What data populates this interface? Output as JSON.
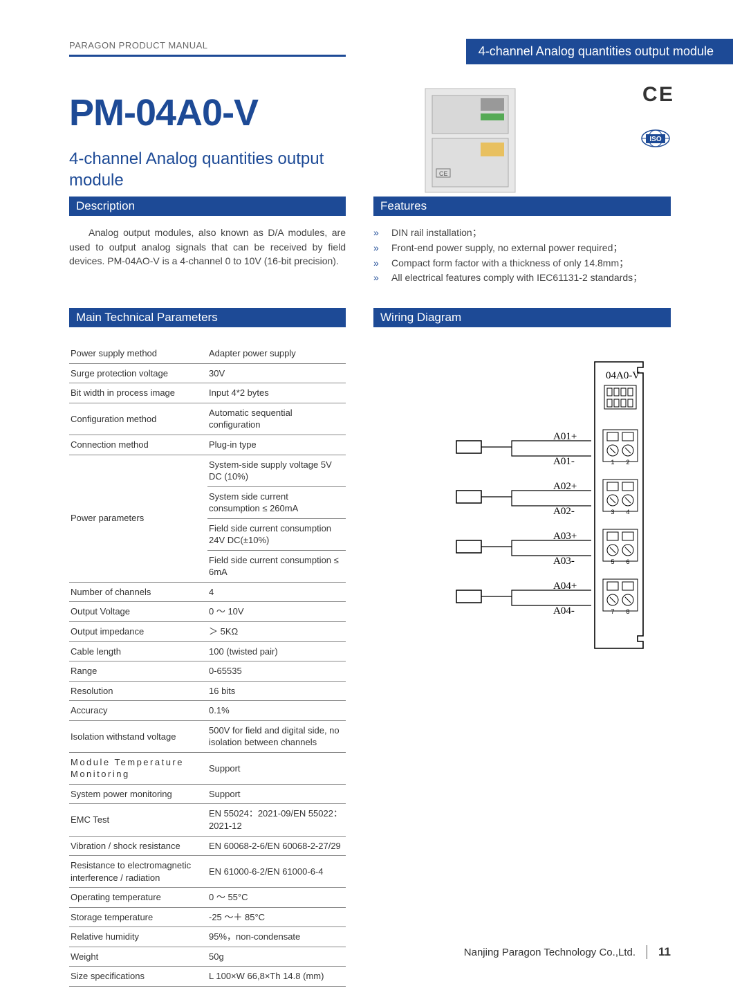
{
  "colors": {
    "brand": "#1d4a96",
    "text": "#333333",
    "muted": "#666666",
    "rule": "#888888"
  },
  "header": {
    "manual_label": "PARAGON PRODUCT MANUAL",
    "banner": "4-channel Analog quantities output module"
  },
  "product": {
    "code": "PM-04A0-V",
    "subtitle": "4-channel Analog quantities output module"
  },
  "certifications": {
    "ce": "CE",
    "iso": "ISO"
  },
  "sections": {
    "description_title": "Description",
    "description_body": "Analog output modules, also known as D/A modules, are used to output analog signals that can be received by field devices. PM-04AO-V is a 4-channel 0 to 10V (16-bit precision).",
    "features_title": "Features",
    "features": [
      "DIN rail installation；",
      "Front-end power supply, no external power required；",
      "Compact form factor with a thickness of only 14.8mm；",
      "All electrical features comply with IEC61131-2 standards；"
    ],
    "params_title": "Main Technical Parameters",
    "wiring_title": "Wiring Diagram"
  },
  "specs": [
    {
      "k": "Power supply method",
      "v": "Adapter power supply"
    },
    {
      "k": "Surge protection voltage",
      "v": "30V"
    },
    {
      "k": "Bit width in process image",
      "v": "Input 4*2 bytes"
    },
    {
      "k": "Configuration method",
      "v": "Automatic sequential configuration"
    },
    {
      "k": "Connection method",
      "v": "Plug-in type"
    },
    {
      "k": "Power parameters",
      "rowspan": 4,
      "v": "System-side supply voltage 5V DC (10%)"
    },
    {
      "v": "System side current consumption ≤ 260mA"
    },
    {
      "v": "Field side current consumption 24V DC(±10%)"
    },
    {
      "v": "Field side current consumption ≤ 6mA"
    },
    {
      "k": "Number of channels",
      "v": "4"
    },
    {
      "k": "Output Voltage",
      "v": "0 ～ 10V"
    },
    {
      "k": "Output impedance",
      "v": "＞ 5KΩ"
    },
    {
      "k": "Cable length",
      "v": "100 (twisted pair)"
    },
    {
      "k": "Range",
      "v": "0-65535"
    },
    {
      "k": "Resolution",
      "v": "16 bits"
    },
    {
      "k": "Accuracy",
      "v": "0.1%"
    },
    {
      "k": "Isolation withstand voltage",
      "v": "500V for field and digital side, no isolation between channels"
    },
    {
      "k": "Module Temperature Monitoring",
      "spaced": true,
      "v": "Support"
    },
    {
      "k": "System power monitoring",
      "v": "Support"
    },
    {
      "k": "EMC Test",
      "v": "EN 55024：2021-09/EN 55022：2021-12"
    },
    {
      "k": "Vibration / shock resistance",
      "v": "EN 60068-2-6/EN 60068-2-27/29"
    },
    {
      "k": "Resistance to electromagnetic interference / radiation",
      "v": "EN 61000-6-2/EN 61000-6-4"
    },
    {
      "k": "Operating temperature",
      "v": "0 ～ 55°C"
    },
    {
      "k": "Storage temperature",
      "v": "-25 ～＋ 85°C"
    },
    {
      "k": "Relative humidity",
      "v": "95%，non-condensate"
    },
    {
      "k": "Weight",
      "v": "50g"
    },
    {
      "k": "Size specifications",
      "v": "L 100×W 66,8×Th 14.8 (mm)"
    }
  ],
  "wiring": {
    "module_label": "04A0-V",
    "channels": [
      {
        "pos": "A01+",
        "neg": "A01-",
        "pin_a": "1",
        "pin_b": "2"
      },
      {
        "pos": "A02+",
        "neg": "A02-",
        "pin_a": "3",
        "pin_b": "4"
      },
      {
        "pos": "A03+",
        "neg": "A03-",
        "pin_a": "5",
        "pin_b": "6"
      },
      {
        "pos": "A04+",
        "neg": "A04-",
        "pin_a": "7",
        "pin_b": "8"
      }
    ]
  },
  "footer": {
    "company": "Nanjing Paragon Technology Co.,Ltd.",
    "page": "11"
  }
}
